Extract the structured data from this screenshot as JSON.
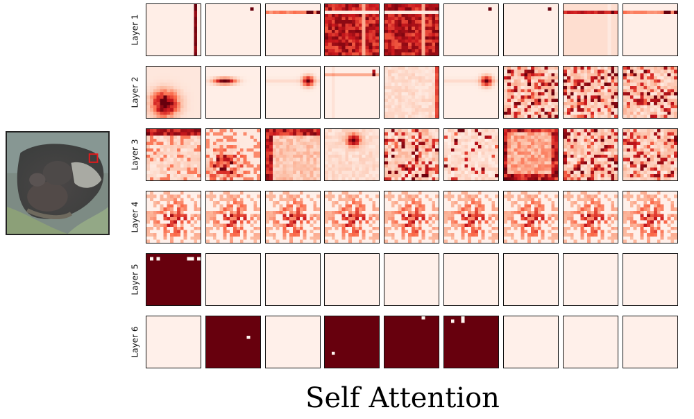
{
  "caption": "Self Attention",
  "rows": [
    {
      "label": "Layer 1",
      "patterns": [
        "col_hot",
        "dot_tr",
        "row_top",
        "dense",
        "dense",
        "dot_tr",
        "dot_tr",
        "row_top_warm",
        "row_top"
      ]
    },
    {
      "label": "Layer 2",
      "patterns": [
        "blob_bl",
        "streak_l",
        "spot_r",
        "row_top_spot",
        "light_col",
        "spot_r",
        "scatter",
        "scatter",
        "scatter"
      ]
    },
    {
      "label": "Layer 3",
      "patterns": [
        "scatter_top",
        "scatter_bl",
        "frame",
        "spot_mid",
        "scatter",
        "scatter_light",
        "frame_br",
        "scatter",
        "scatter"
      ]
    },
    {
      "label": "Layer 4",
      "patterns": [
        "sparse",
        "sparse",
        "sparse",
        "sparse",
        "sparse",
        "sparse",
        "sparse",
        "sparse",
        "sparse"
      ]
    },
    {
      "label": "Layer 5",
      "patterns": [
        "solid_dots5",
        "blank",
        "blank",
        "blank",
        "blank",
        "blank",
        "blank",
        "blank",
        "blank"
      ]
    },
    {
      "label": "Layer 6",
      "patterns": [
        "blank",
        "solid_dot1",
        "blank",
        "solid_dot1b",
        "solid_dot1c",
        "solid_dots3",
        "blank",
        "blank",
        "blank"
      ]
    }
  ],
  "colors": {
    "dark": "#67000d",
    "mid": "#cb181d",
    "light": "#fcbba1",
    "base": "#fff5f0"
  },
  "query_marker_color": "#e41a1c"
}
